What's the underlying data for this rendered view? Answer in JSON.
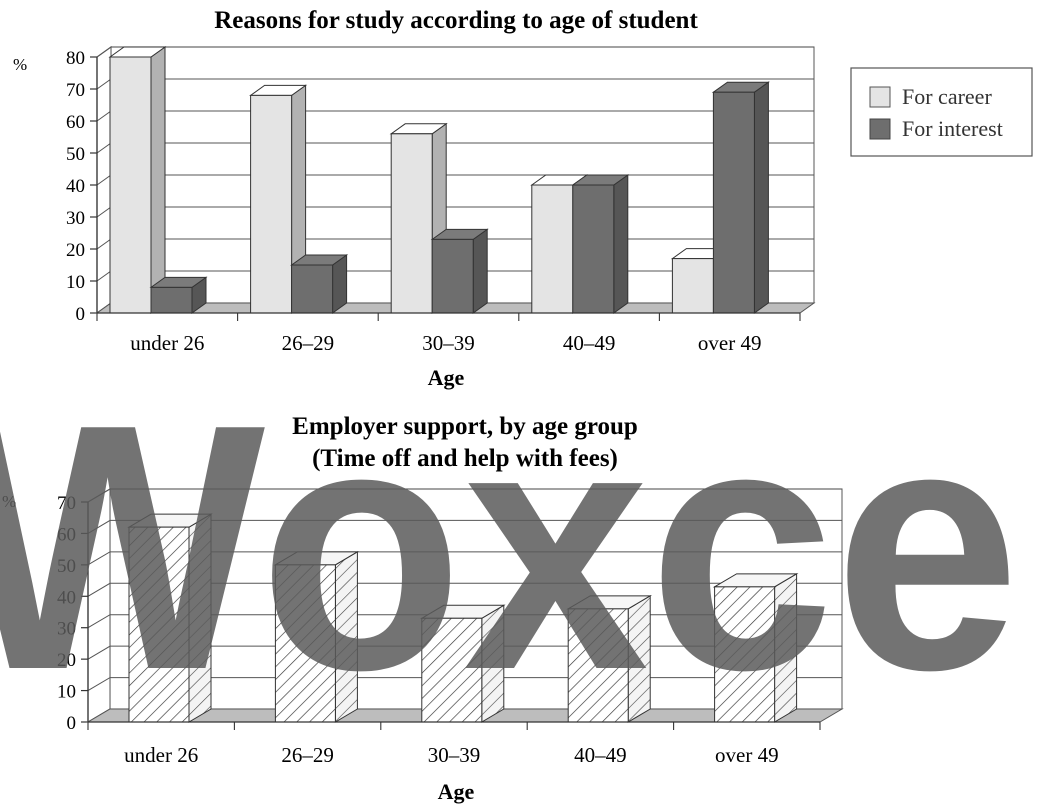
{
  "chart_data": [
    {
      "type": "bar",
      "title": "Reasons for study according to age of student",
      "xlabel": "Age",
      "ylabel": "%",
      "ylim": [
        0,
        80
      ],
      "yticks": [
        0,
        10,
        20,
        30,
        40,
        50,
        60,
        70,
        80
      ],
      "categories": [
        "under 26",
        "26–29",
        "30–39",
        "40–49",
        "over 49"
      ],
      "series": [
        {
          "name": "For career",
          "values": [
            80,
            68,
            56,
            40,
            17
          ],
          "color": "#e4e4e4"
        },
        {
          "name": "For interest",
          "values": [
            8,
            15,
            23,
            40,
            69
          ],
          "color": "#6e6e6e"
        }
      ],
      "legend": "right",
      "grid": true,
      "style": "3d"
    },
    {
      "type": "bar",
      "title": "Employer support, by age group",
      "subtitle": "(Time off and help with fees)",
      "xlabel": "Age",
      "ylabel": "%",
      "ylim": [
        0,
        70
      ],
      "yticks": [
        0,
        10,
        20,
        30,
        40,
        50,
        60,
        70
      ],
      "categories": [
        "under 26",
        "26–29",
        "30–39",
        "40–49",
        "over 49"
      ],
      "series": [
        {
          "values": [
            62,
            50,
            33,
            36,
            43
          ],
          "color": "#ffffff",
          "pattern": "diagonal-hatch"
        }
      ],
      "grid": true,
      "style": "3d"
    }
  ],
  "watermark": "Woxce"
}
